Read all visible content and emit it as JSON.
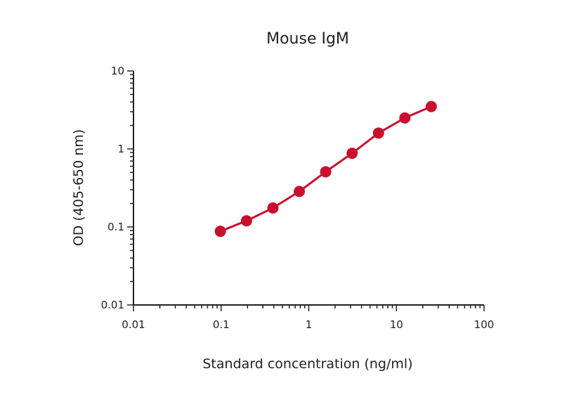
{
  "chart_data": {
    "type": "line",
    "title": "Mouse IgM",
    "xlabel": "Standard concentration (ng/ml)",
    "ylabel": "OD (405-650 nm)",
    "xscale": "log",
    "yscale": "log",
    "xlim": [
      0.01,
      100
    ],
    "ylim": [
      0.01,
      10
    ],
    "x_ticks": [
      0.01,
      0.1,
      1,
      10,
      100
    ],
    "x_tick_labels": [
      "0.01",
      "0.1",
      "1",
      "10",
      "100"
    ],
    "y_ticks": [
      0.01,
      0.1,
      1,
      10
    ],
    "y_tick_labels": [
      "0.01",
      "0.1",
      "1",
      "10"
    ],
    "grid": false,
    "color": "#c8102e",
    "series": [
      {
        "x": [
          0.098,
          0.195,
          0.39,
          0.78,
          1.56,
          3.125,
          6.25,
          12.5,
          25
        ],
        "y": [
          0.088,
          0.12,
          0.175,
          0.285,
          0.51,
          0.88,
          1.6,
          2.5,
          3.5
        ]
      }
    ]
  }
}
